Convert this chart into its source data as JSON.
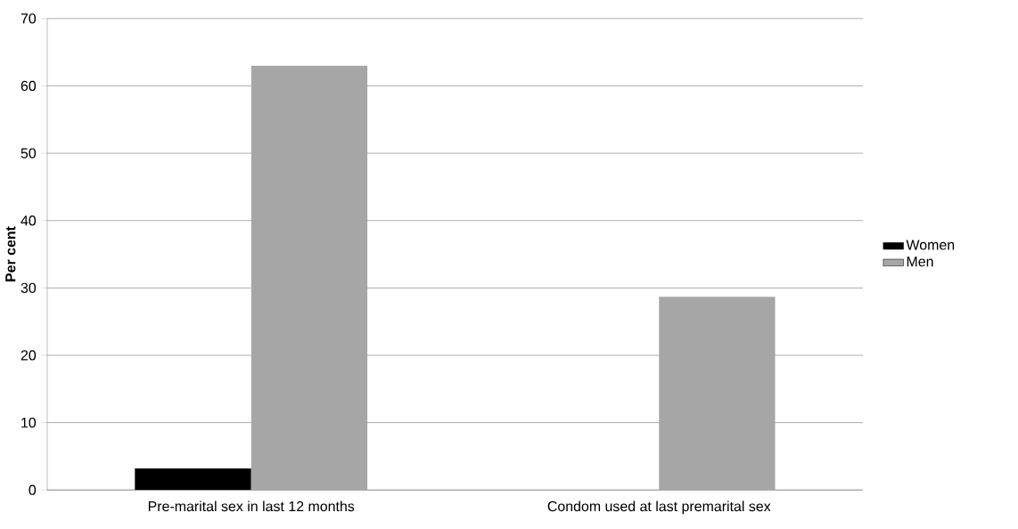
{
  "chart_data": {
    "type": "bar",
    "ylabel": "Per cent",
    "categories": [
      "Pre-marital sex in last 12 months",
      "Condom used at last premarital sex"
    ],
    "series": [
      {
        "name": "Women",
        "color": "#000000",
        "values": [
          3.2,
          null
        ]
      },
      {
        "name": "Men",
        "color": "#a6a6a6",
        "values": [
          63.0,
          28.7
        ]
      }
    ],
    "ylim": [
      0,
      70
    ],
    "yticks": [
      0,
      10,
      20,
      30,
      40,
      50,
      60,
      70
    ],
    "grid": "y",
    "legend": "right"
  }
}
